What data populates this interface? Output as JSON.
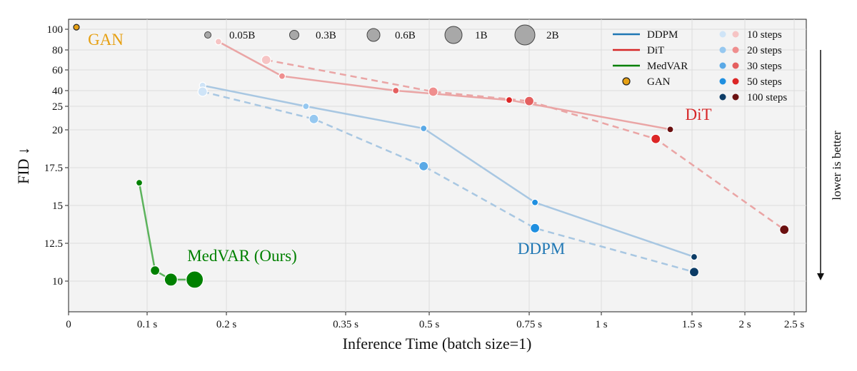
{
  "chart_data": {
    "type": "scatter",
    "xlabel": "Inference Time (batch size=1)",
    "ylabel": "FID ↓",
    "x_ticks": [
      {
        "value": 0,
        "label": "0"
      },
      {
        "value": 0.1,
        "label": "0.1 s"
      },
      {
        "value": 0.2,
        "label": "0.2 s"
      },
      {
        "value": 0.35,
        "label": "0.35 s"
      },
      {
        "value": 0.5,
        "label": "0.5 s"
      },
      {
        "value": 0.75,
        "label": "0.75 s"
      },
      {
        "value": 1.0,
        "label": "1 s"
      },
      {
        "value": 1.5,
        "label": "1.5 s"
      },
      {
        "value": 2.0,
        "label": "2 s"
      },
      {
        "value": 2.5,
        "label": "2.5 s"
      }
    ],
    "y_ticks": [
      {
        "value": 10,
        "label": "10"
      },
      {
        "value": 12.5,
        "label": "12.5"
      },
      {
        "value": 15,
        "label": "15"
      },
      {
        "value": 17.5,
        "label": "17.5"
      },
      {
        "value": 20,
        "label": "20"
      },
      {
        "value": 25,
        "label": "25"
      },
      {
        "value": 40,
        "label": "40"
      },
      {
        "value": 60,
        "label": "60"
      },
      {
        "value": 80,
        "label": "80"
      },
      {
        "value": 100,
        "label": "100"
      }
    ],
    "grid": true,
    "series": [
      {
        "name": "DDPM",
        "annotation": "DDPM",
        "color": "#1f77b4",
        "lines": [
          {
            "style": "solid",
            "points": [
              {
                "x": 0.17,
                "y": 45,
                "size": "0.05B",
                "steps": 10
              },
              {
                "x": 0.3,
                "y": 25,
                "size": "0.05B",
                "steps": 20
              },
              {
                "x": 0.49,
                "y": 20.3,
                "size": "0.05B",
                "steps": 30
              },
              {
                "x": 0.77,
                "y": 15.2,
                "size": "0.05B",
                "steps": 50
              },
              {
                "x": 1.52,
                "y": 11.6,
                "size": "0.05B",
                "steps": 100
              }
            ]
          },
          {
            "style": "dashed",
            "points": [
              {
                "x": 0.17,
                "y": 39,
                "size": "0.3B",
                "steps": 10
              },
              {
                "x": 0.31,
                "y": 22.3,
                "size": "0.3B",
                "steps": 20
              },
              {
                "x": 0.49,
                "y": 17.6,
                "size": "0.3B",
                "steps": 30
              },
              {
                "x": 0.77,
                "y": 13.5,
                "size": "0.3B",
                "steps": 50
              },
              {
                "x": 1.52,
                "y": 10.6,
                "size": "0.3B",
                "steps": 100
              }
            ]
          }
        ]
      },
      {
        "name": "DiT",
        "annotation": "DiT",
        "color": "#d62728",
        "lines": [
          {
            "style": "solid",
            "points": [
              {
                "x": 0.19,
                "y": 88,
                "size": "0.05B",
                "steps": 10
              },
              {
                "x": 0.27,
                "y": 54,
                "size": "0.05B",
                "steps": 20
              },
              {
                "x": 0.44,
                "y": 40,
                "size": "0.05B",
                "steps": 30
              },
              {
                "x": 0.7,
                "y": 31,
                "size": "0.05B",
                "steps": 50
              },
              {
                "x": 1.38,
                "y": 20.1,
                "size": "0.05B",
                "steps": 100
              }
            ]
          },
          {
            "style": "dashed",
            "points": [
              {
                "x": 0.25,
                "y": 70,
                "size": "0.3B",
                "steps": 10
              },
              {
                "x": 0.51,
                "y": 39,
                "size": "0.3B",
                "steps": 20
              },
              {
                "x": 0.75,
                "y": 30,
                "size": "0.3B",
                "steps": 30
              },
              {
                "x": 1.3,
                "y": 19.4,
                "size": "0.3B",
                "steps": 50
              },
              {
                "x": 2.4,
                "y": 13.4,
                "size": "0.3B",
                "steps": 100
              }
            ]
          }
        ]
      },
      {
        "name": "MedVAR",
        "annotation": "MedVAR (Ours)",
        "color": "#008000",
        "lines": [
          {
            "style": "solid",
            "points": [
              {
                "x": 0.09,
                "y": 16.5,
                "size": "0.05B"
              },
              {
                "x": 0.11,
                "y": 10.7,
                "size": "0.3B"
              },
              {
                "x": 0.13,
                "y": 10.1,
                "size": "0.6B"
              },
              {
                "x": 0.16,
                "y": 10.1,
                "size": "1B"
              }
            ]
          }
        ]
      },
      {
        "name": "GAN",
        "annotation": "GAN",
        "color": "#e6a013",
        "points": [
          {
            "x": 0.01,
            "y": 102
          }
        ]
      }
    ],
    "legend": {
      "placement": "top",
      "sizes": [
        "0.05B",
        "0.3B",
        "0.6B",
        "1B",
        "2B"
      ],
      "models": [
        {
          "label": "DDPM",
          "color": "#1f77b4",
          "marker": "line"
        },
        {
          "label": "DiT",
          "color": "#d62728",
          "marker": "line"
        },
        {
          "label": "MedVAR",
          "color": "#008000",
          "marker": "line"
        },
        {
          "label": "GAN",
          "color": "#e6a013",
          "marker": "dot"
        }
      ],
      "steps": [
        {
          "label": "10 steps",
          "blue": "#cfe4f7",
          "red": "#f6c4c4"
        },
        {
          "label": "20 steps",
          "blue": "#96c8f0",
          "red": "#ef8e8e"
        },
        {
          "label": "30 steps",
          "blue": "#5aa9e6",
          "red": "#e45f5f"
        },
        {
          "label": "50 steps",
          "blue": "#1f8fe0",
          "red": "#dc2626"
        },
        {
          "label": "100 steps",
          "blue": "#0c3c66",
          "red": "#6b1010"
        }
      ]
    },
    "side_annotation": "lower is better"
  }
}
